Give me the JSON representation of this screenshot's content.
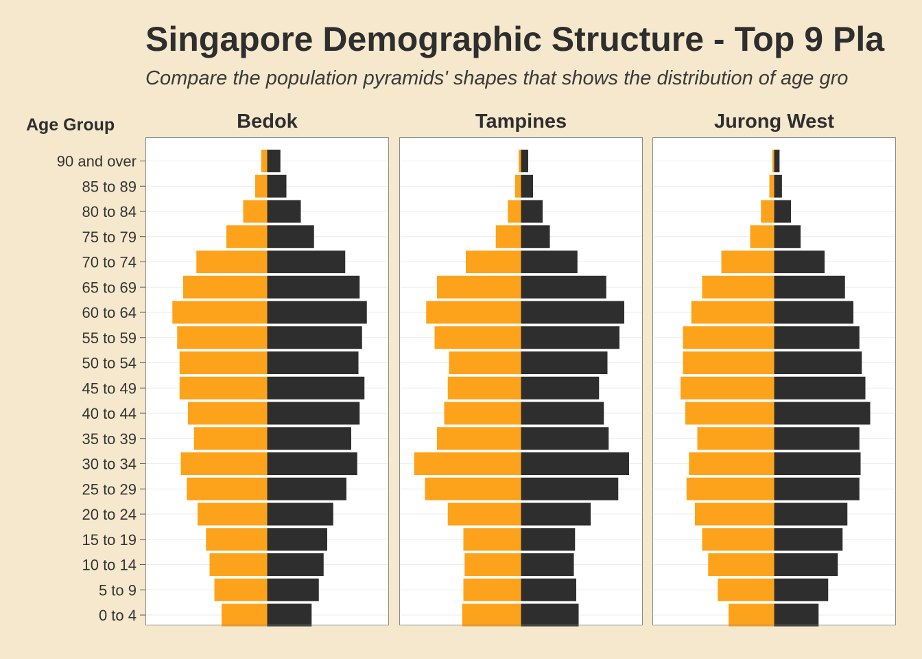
{
  "header": {
    "title": "Singapore Demographic Structure - Top 9 Pla",
    "subtitle": "Compare the population pyramids' shapes that shows the distribution of age gro"
  },
  "colors": {
    "female": "#fda31b",
    "male": "#2e2e2e",
    "background": "#f5e8cd",
    "panel": "#ffffff",
    "text": "#2e2e2e"
  },
  "chart_data": {
    "type": "bar",
    "orientation": "horizontal",
    "subtype": "population-pyramid",
    "ylabel": "Age Group",
    "categories": [
      "0 to 4",
      "5 to 9",
      "10 to 14",
      "15 to 19",
      "20 to 24",
      "25 to 29",
      "30 to 34",
      "35 to 39",
      "40 to 44",
      "45 to 49",
      "50 to 54",
      "55 to 59",
      "60 to 64",
      "65 to 69",
      "70 to 74",
      "75 to 79",
      "80 to 84",
      "85 to 89",
      "90 and over"
    ],
    "grid": true,
    "x_axis_labels_shown": false,
    "facets": [
      {
        "name": "Bedok",
        "left_values": [
          3.8,
          4.4,
          4.8,
          5.1,
          5.8,
          6.7,
          7.2,
          6.1,
          6.6,
          7.3,
          7.3,
          7.5,
          7.9,
          7.0,
          5.9,
          3.4,
          2.0,
          1.0,
          0.5
        ],
        "right_values": [
          3.7,
          4.3,
          4.7,
          5.0,
          5.5,
          6.6,
          7.5,
          7.0,
          7.7,
          8.1,
          7.6,
          7.9,
          8.3,
          7.7,
          6.5,
          3.9,
          2.8,
          1.6,
          1.1
        ]
      },
      {
        "name": "Tampines",
        "left_values": [
          4.9,
          4.8,
          4.7,
          4.8,
          6.1,
          8.0,
          8.9,
          7.0,
          6.4,
          6.1,
          6.0,
          7.2,
          7.9,
          7.0,
          4.6,
          2.1,
          1.1,
          0.5,
          0.2
        ],
        "right_values": [
          4.8,
          4.6,
          4.4,
          4.5,
          5.8,
          8.1,
          9.0,
          7.3,
          6.9,
          6.5,
          7.2,
          8.2,
          8.6,
          7.1,
          4.7,
          2.4,
          1.8,
          1.0,
          0.6
        ]
      },
      {
        "name": "Jurong West",
        "left_values": [
          3.8,
          4.7,
          5.5,
          6.0,
          6.6,
          7.3,
          7.1,
          6.4,
          7.4,
          7.8,
          7.6,
          7.6,
          6.9,
          6.0,
          4.4,
          2.0,
          1.1,
          0.4,
          0.15
        ],
        "right_values": [
          3.7,
          4.5,
          5.3,
          5.7,
          6.1,
          7.1,
          7.2,
          7.1,
          8.0,
          7.6,
          7.3,
          7.1,
          6.6,
          5.9,
          4.2,
          2.2,
          1.4,
          0.65,
          0.45
        ]
      }
    ]
  }
}
